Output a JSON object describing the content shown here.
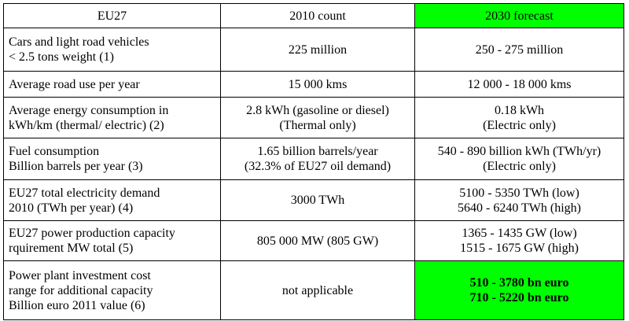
{
  "header": {
    "col1": "EU27",
    "col2": "2010 count",
    "col3": "2030 forecast"
  },
  "rows": [
    {
      "label": [
        "Cars and light road vehicles",
        "< 2.5 tons weight (1)"
      ],
      "count_2010": [
        "225 million"
      ],
      "forecast_2030": [
        "250 - 275 million"
      ]
    },
    {
      "label": [
        "Average road use per year"
      ],
      "count_2010": [
        "15 000 kms"
      ],
      "forecast_2030": [
        "12 000 - 18 000 kms"
      ]
    },
    {
      "label": [
        "Average energy consumption in",
        "kWh/km (thermal/ electric) (2)"
      ],
      "count_2010": [
        "2.8 kWh (gasoline or diesel)",
        "(Thermal only)"
      ],
      "forecast_2030": [
        "0.18 kWh",
        "(Electric only)"
      ]
    },
    {
      "label": [
        "Fuel consumption",
        "Billion barrels per year (3)"
      ],
      "count_2010": [
        "1.65 billion barrels/year",
        "(32.3% of EU27 oil demand)"
      ],
      "forecast_2030": [
        "540 - 890 billion kWh (TWh/yr)",
        "(Electric only)"
      ]
    },
    {
      "label": [
        "EU27 total electricity demand",
        "2010 (TWh per year) (4)"
      ],
      "count_2010": [
        "3000 TWh"
      ],
      "forecast_2030": [
        "5100 - 5350 TWh (low)",
        "5640 - 6240 TWh (high)"
      ]
    },
    {
      "label": [
        "EU27 power production capacity",
        "rquirement MW total (5)"
      ],
      "count_2010": [
        "805 000 MW (805 GW)"
      ],
      "forecast_2030": [
        "1365 - 1435 GW (low)",
        "1515 - 1675 GW (high)"
      ]
    },
    {
      "label": [
        "Power plant investment cost",
        "range for additional capacity",
        "Billion euro 2011 value (6)"
      ],
      "count_2010": [
        "not applicable"
      ],
      "forecast_2030": [
        "510 - 3780 bn euro",
        "710 - 5220 bn euro"
      ]
    }
  ],
  "colors": {
    "highlight": "#00ff00",
    "border": "#000000"
  }
}
